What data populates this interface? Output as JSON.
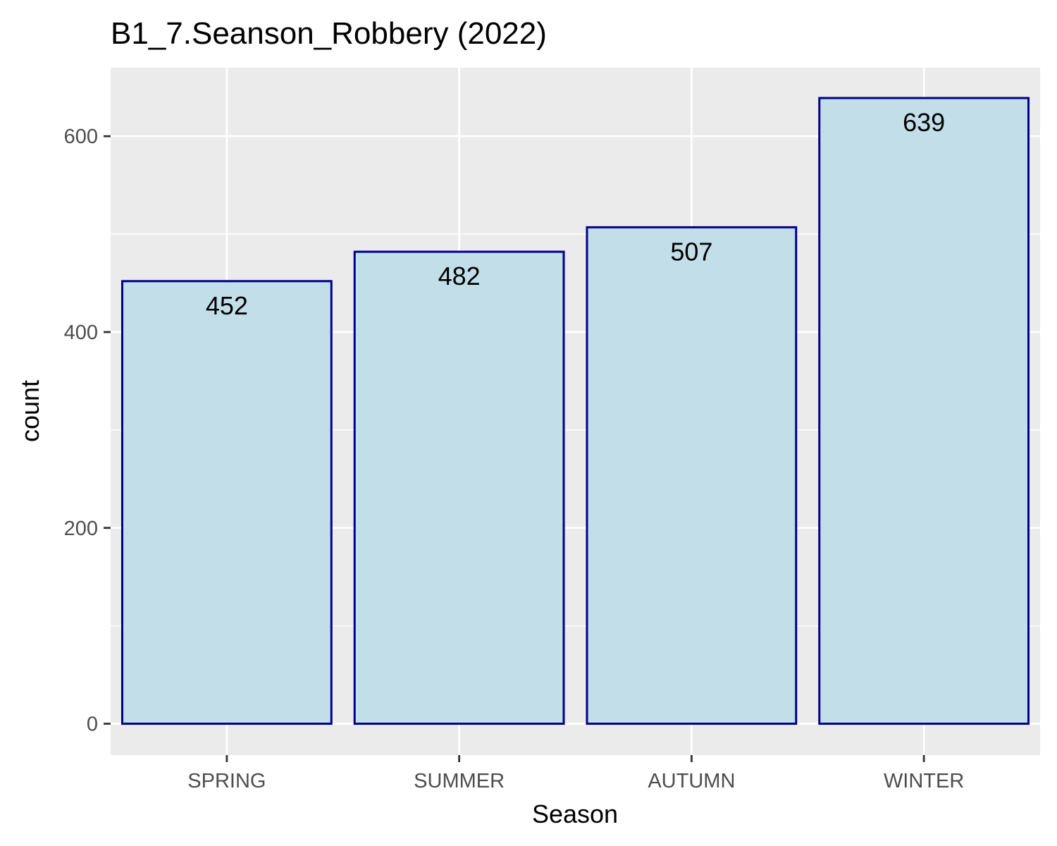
{
  "chart_data": {
    "type": "bar",
    "title": "B1_7.Seanson_Robbery (2022)",
    "xlabel": "Season",
    "ylabel": "count",
    "categories": [
      "SPRING",
      "SUMMER",
      "AUTUMN",
      "WINTER"
    ],
    "values": [
      452,
      482,
      507,
      639
    ],
    "data_labels": [
      "452",
      "482",
      "507",
      "639"
    ],
    "ylim": [
      -32,
      670
    ],
    "y_ticks": [
      0,
      200,
      400,
      600
    ],
    "y_tick_labels": [
      "0",
      "200",
      "400",
      "600"
    ],
    "y_minor_ticks": [
      100,
      300,
      500
    ],
    "grid": true,
    "legend": "none",
    "colors": {
      "bar_fill": "#c2dfe9",
      "bar_outline": "#00008b",
      "panel_background": "#ebebeb",
      "grid_line": "#ffffff",
      "tick_text": "#4d4d4d",
      "axis_tick": "#333333"
    }
  }
}
